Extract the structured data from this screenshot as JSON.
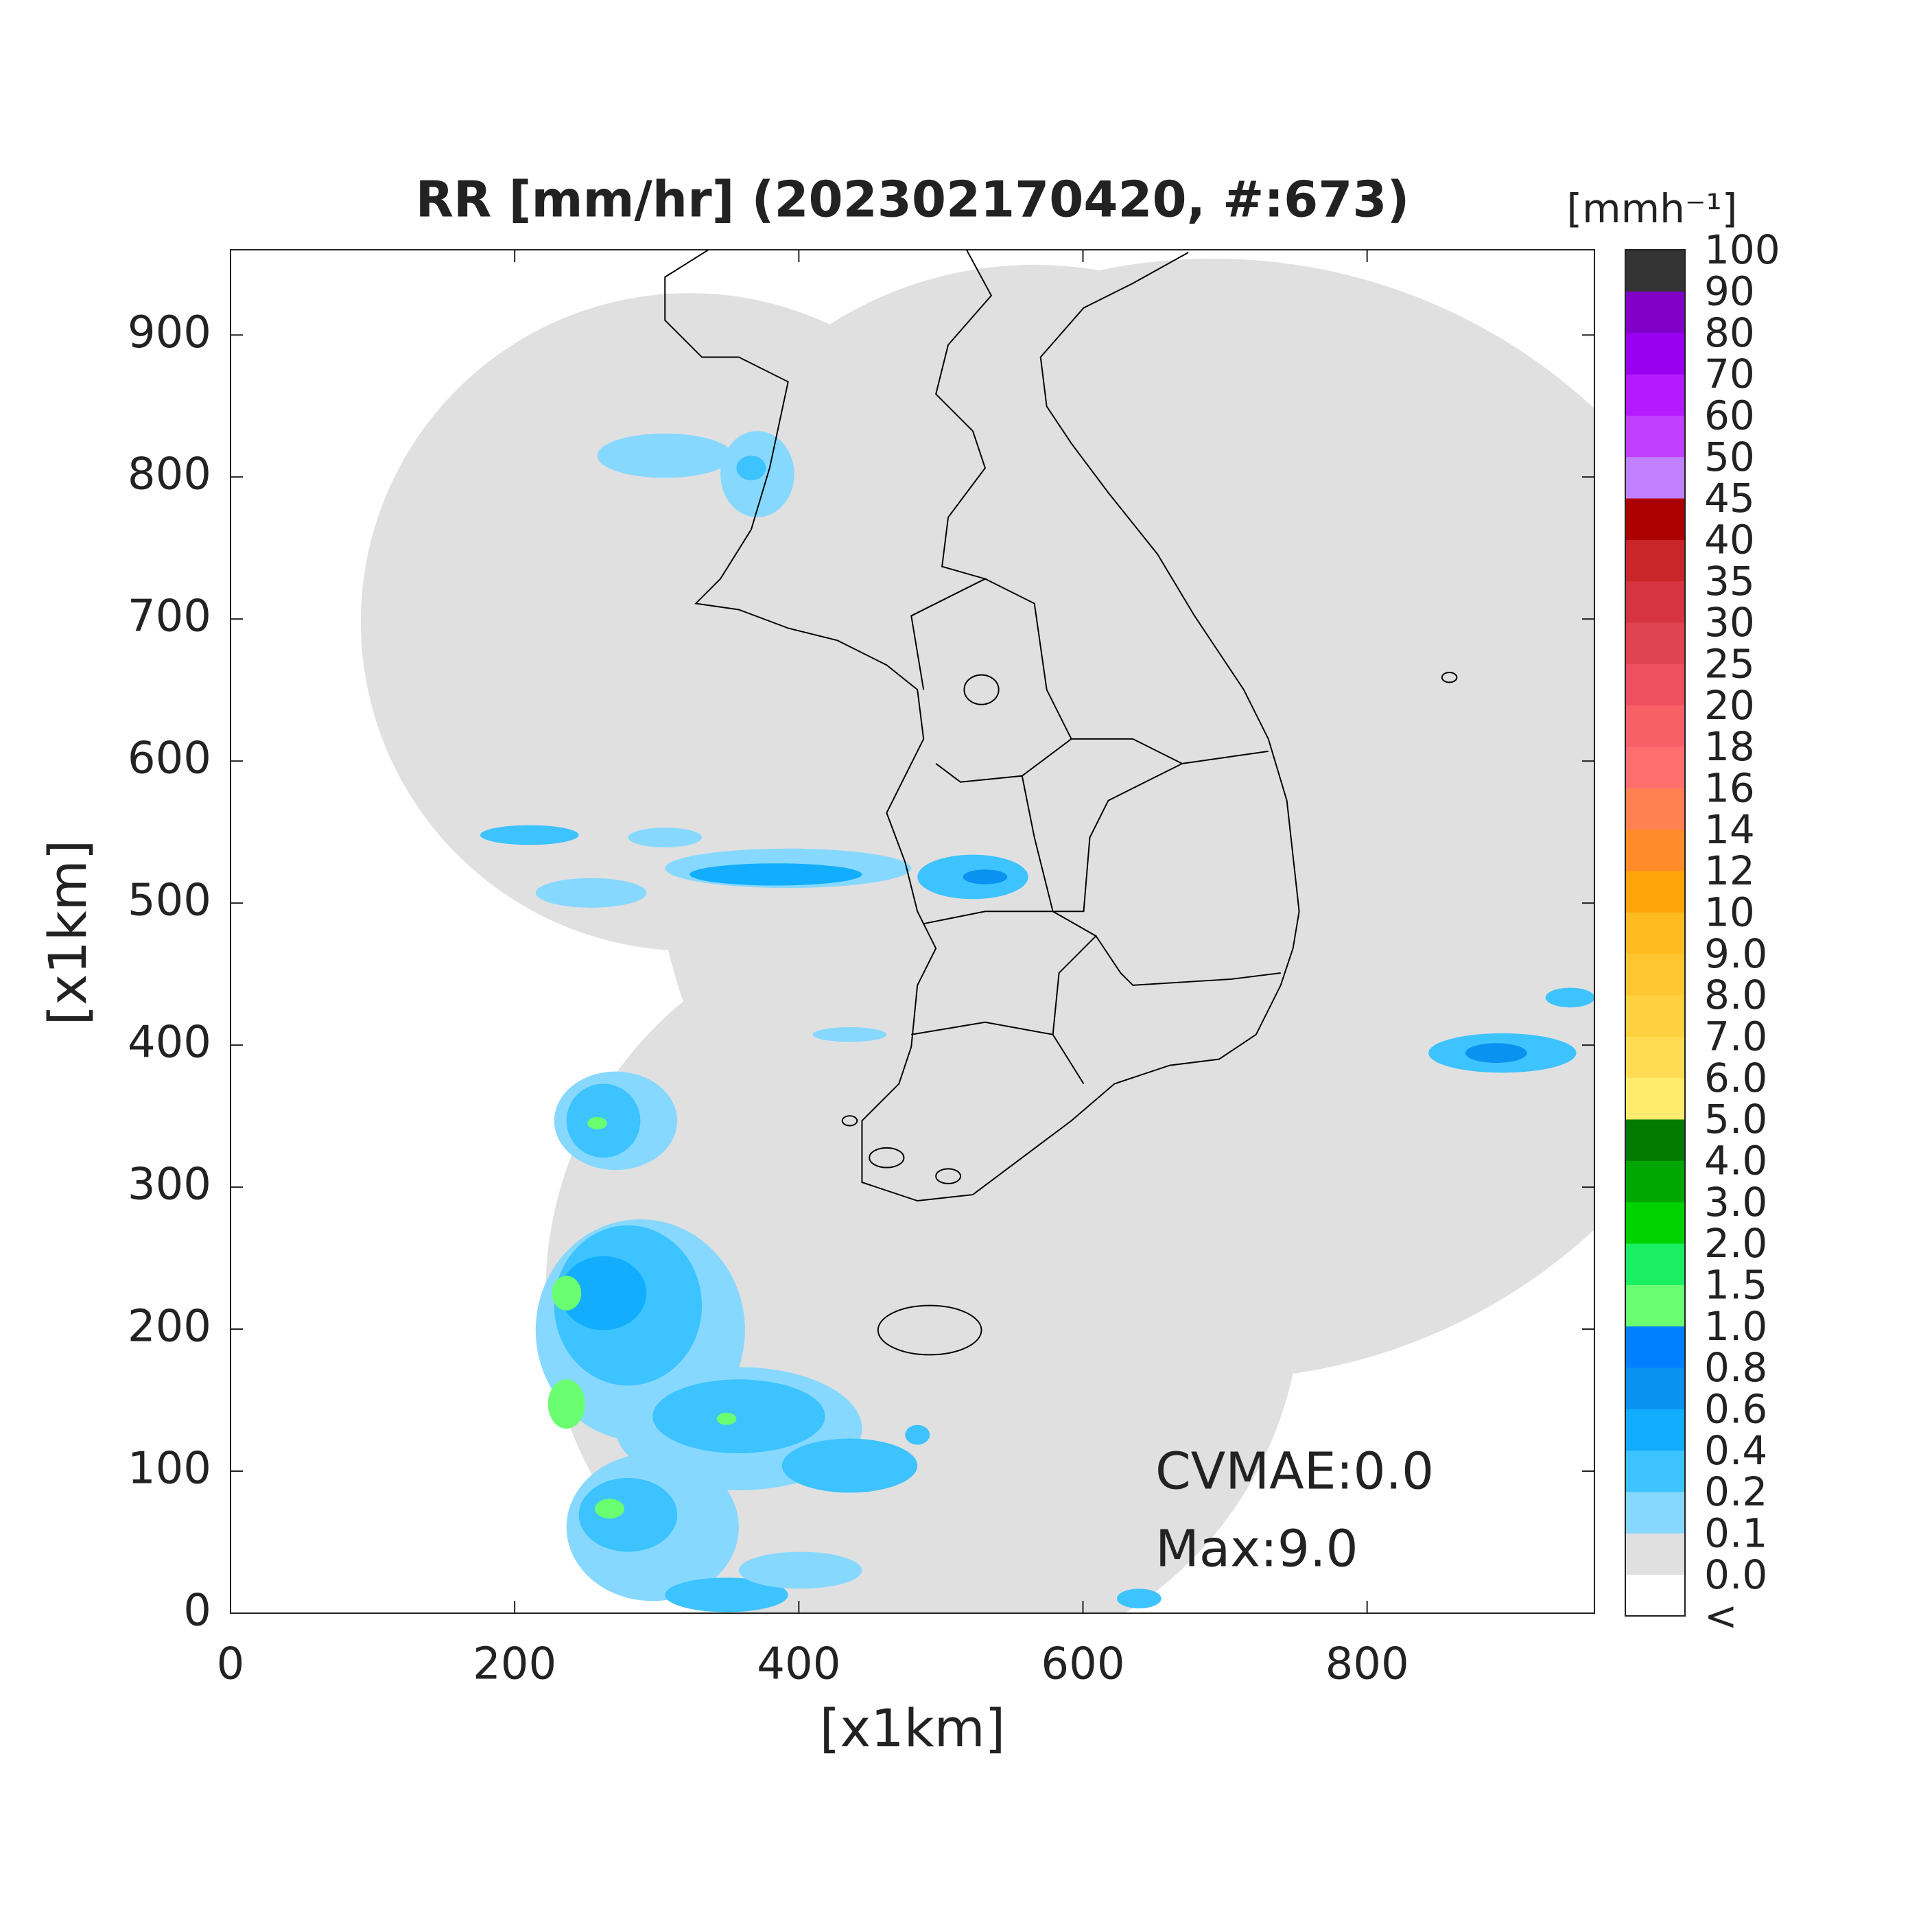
{
  "chart_data": {
    "type": "map",
    "title": "RR [mm/hr] (202302170420, #:673)",
    "xlabel": "[x1km]",
    "ylabel": "[x1km]",
    "xlim": [
      0,
      960
    ],
    "ylim": [
      0,
      960
    ],
    "xticks": [
      0,
      200,
      400,
      600,
      800
    ],
    "yticks": [
      0,
      100,
      200,
      300,
      400,
      500,
      600,
      700,
      800,
      900
    ],
    "annotations": [
      "CVMAE:0.0",
      "Max:9.0"
    ],
    "colorbar": {
      "label": "[mmh⁻¹]",
      "labels": [
        "<",
        "0.0",
        "0.1",
        "0.2",
        "0.4",
        "0.6",
        "0.8",
        "1.0",
        "1.5",
        "2.0",
        "3.0",
        "4.0",
        "5.0",
        "6.0",
        "7.0",
        "8.0",
        "9.0",
        "10",
        "12",
        "14",
        "16",
        "18",
        "20",
        "25",
        "30",
        "35",
        "40",
        "45",
        "50",
        "60",
        "70",
        "80",
        "90",
        "100"
      ],
      "colors": [
        "#ffffff",
        "#e0e0e0",
        "#87d8ff",
        "#3dc3ff",
        "#12aefd",
        "#0a92f0",
        "#0080ff",
        "#6aff70",
        "#1aef64",
        "#00d200",
        "#00a700",
        "#007a00",
        "#ffec6e",
        "#ffdc54",
        "#ffd03f",
        "#ffc62f",
        "#ffbb20",
        "#ffa50a",
        "#ff8c28",
        "#ff8050",
        "#ff6e6e",
        "#f86068",
        "#ee5060",
        "#e04450",
        "#d53440",
        "#c82628",
        "#ad0000",
        "#c080ff",
        "#c040ff",
        "#b31aff",
        "#9a00f0",
        "#8000c8",
        "#333333"
      ]
    }
  }
}
